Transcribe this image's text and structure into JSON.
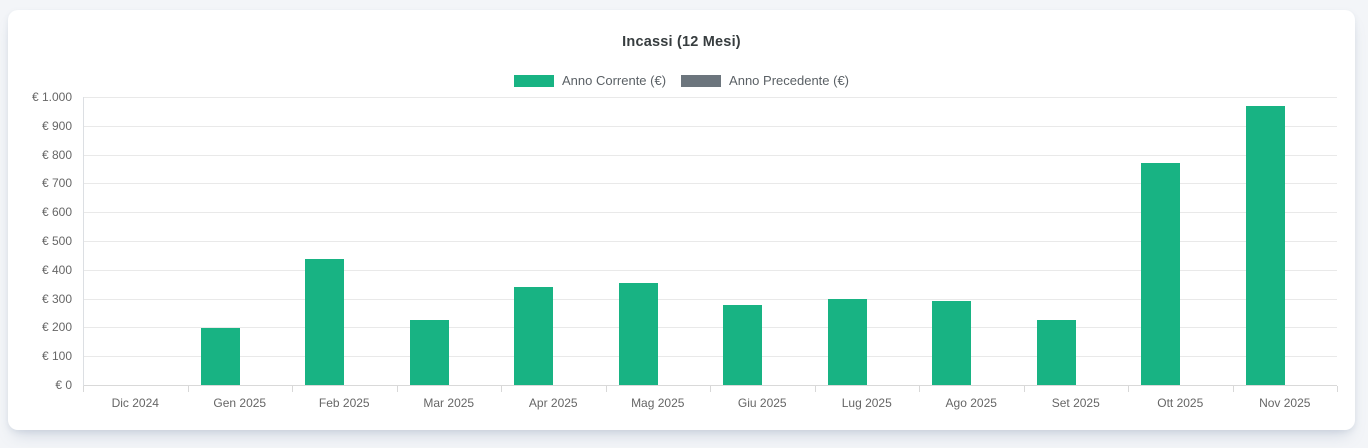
{
  "card": {
    "title": "Incassi (12 Mesi)"
  },
  "legend": {
    "items": [
      {
        "label": "Anno Corrente (€)",
        "color": "#18b383"
      },
      {
        "label": "Anno Precedente (€)",
        "color": "#6c757d"
      }
    ]
  },
  "colors": {
    "accent_green": "#18b383",
    "series_gray": "#6c757d",
    "title_text": "#373d3f",
    "axis_text": "#666666",
    "gridline": "#e9e9e9",
    "card_bg": "#ffffff",
    "page_bg": "#f3f5f8"
  },
  "chart_data": {
    "type": "bar",
    "title": "Incassi (12 Mesi)",
    "categories": [
      "Dic 2024",
      "Gen 2025",
      "Feb 2025",
      "Mar 2025",
      "Apr 2025",
      "Mag 2025",
      "Giu 2025",
      "Lug 2025",
      "Ago 2025",
      "Set 2025",
      "Ott 2025",
      "Nov 2025"
    ],
    "series": [
      {
        "name": "Anno Corrente (€)",
        "color": "#18b383",
        "values": [
          0,
          197,
          438,
          224,
          340,
          355,
          278,
          298,
          293,
          227,
          772,
          968
        ]
      },
      {
        "name": "Anno Precedente (€)",
        "color": "#6c757d",
        "values": [
          0,
          0,
          0,
          0,
          0,
          0,
          0,
          0,
          0,
          0,
          0,
          0
        ]
      }
    ],
    "xlabel": "",
    "ylabel": "",
    "ylim": [
      0,
      1000
    ],
    "ytick_step": 100,
    "ytick_labels": [
      "€ 0",
      "€ 100",
      "€ 200",
      "€ 300",
      "€ 400",
      "€ 500",
      "€ 600",
      "€ 700",
      "€ 800",
      "€ 900",
      "€ 1.000"
    ],
    "grid": true,
    "legend_position": "top"
  }
}
